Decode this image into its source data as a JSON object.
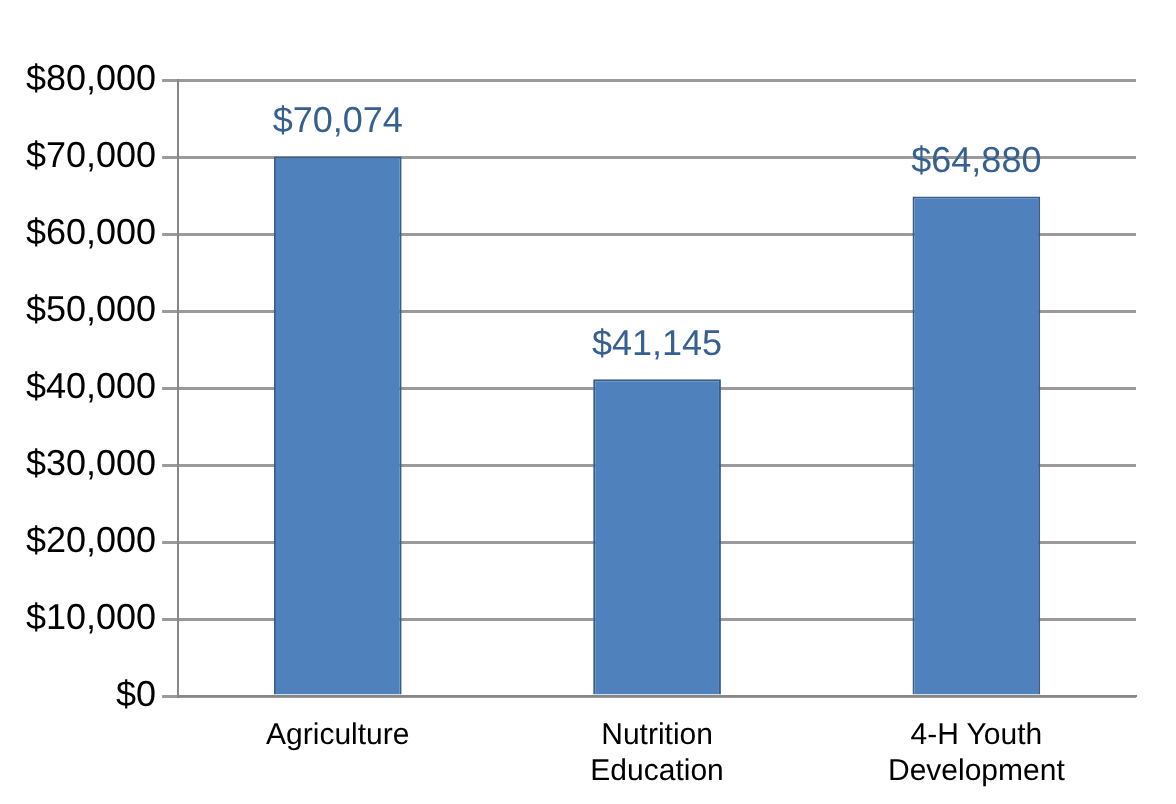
{
  "chart_data": {
    "type": "bar",
    "categories": [
      "Agriculture",
      "Nutrition Education",
      "4-H Youth Development"
    ],
    "values": [
      70074,
      41145,
      64880
    ],
    "color": "#4f81bd",
    "value_labels": [
      "$70,074",
      "$41,145",
      "$64,880"
    ],
    "ylim": [
      0,
      80000
    ],
    "yticks": [
      {
        "value": 0,
        "label": "$0"
      },
      {
        "value": 10000,
        "label": "$10,000"
      },
      {
        "value": 20000,
        "label": "$20,000"
      },
      {
        "value": 30000,
        "label": "$30,000"
      },
      {
        "value": 40000,
        "label": "$40,000"
      },
      {
        "value": 50000,
        "label": "$50,000"
      },
      {
        "value": 60000,
        "label": "$60,000"
      },
      {
        "value": 70000,
        "label": "$70,000"
      },
      {
        "value": 80000,
        "label": "$80,000"
      }
    ],
    "grid": "y",
    "legend": false
  }
}
